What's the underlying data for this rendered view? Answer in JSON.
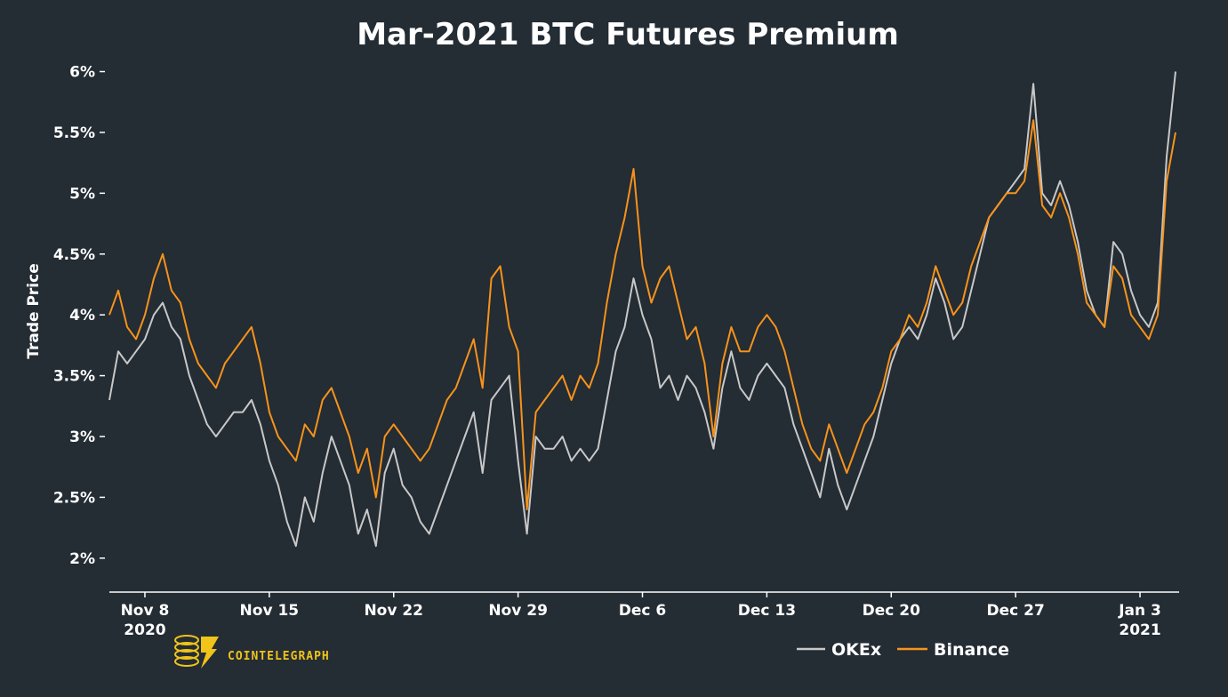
{
  "chart_data": {
    "type": "line",
    "title": "Mar-2021 BTC Futures Premium",
    "ylabel": "Trade Price",
    "xlabel": "",
    "ylim": [
      1.75,
      6.15
    ],
    "xlim": [
      -1.0,
      59.2
    ],
    "y_ticks": [
      {
        "value": 2.0,
        "label": "2%"
      },
      {
        "value": 2.5,
        "label": "2.5%"
      },
      {
        "value": 3.0,
        "label": "3%"
      },
      {
        "value": 3.5,
        "label": "3.5%"
      },
      {
        "value": 4.0,
        "label": "4%"
      },
      {
        "value": 4.5,
        "label": "4.5%"
      },
      {
        "value": 5.0,
        "label": "5%"
      },
      {
        "value": 5.5,
        "label": "5.5%"
      },
      {
        "value": 6.0,
        "label": "6%"
      }
    ],
    "x_ticks": [
      {
        "value": 1,
        "line1": "Nov 8",
        "line2": "2020"
      },
      {
        "value": 8,
        "line1": "Nov 15",
        "line2": ""
      },
      {
        "value": 15,
        "line1": "Nov 22",
        "line2": ""
      },
      {
        "value": 22,
        "line1": "Nov 29",
        "line2": ""
      },
      {
        "value": 29,
        "line1": "Dec 6",
        "line2": ""
      },
      {
        "value": 36,
        "line1": "Dec 13",
        "line2": ""
      },
      {
        "value": 43,
        "line1": "Dec 20",
        "line2": ""
      },
      {
        "value": 50,
        "line1": "Dec 27",
        "line2": ""
      },
      {
        "value": 57,
        "line1": "Jan 3",
        "line2": "2021"
      }
    ],
    "x_unit": "days since Nov 7 2020",
    "series": [
      {
        "name": "OKEx",
        "color": "#c8c8c8",
        "x": [
          -1.0,
          -0.5,
          0.0,
          0.5,
          1.0,
          1.5,
          2.0,
          2.5,
          3.0,
          3.5,
          4.0,
          4.5,
          5.0,
          5.5,
          6.0,
          6.5,
          7.0,
          7.5,
          8.0,
          8.5,
          9.0,
          9.5,
          10.0,
          10.5,
          11.0,
          11.5,
          12.0,
          12.5,
          13.0,
          13.5,
          14.0,
          14.5,
          15.0,
          15.5,
          16.0,
          16.5,
          17.0,
          17.5,
          18.0,
          18.5,
          19.0,
          19.5,
          20.0,
          20.5,
          21.0,
          21.5,
          22.0,
          22.5,
          23.0,
          23.5,
          24.0,
          24.5,
          25.0,
          25.5,
          26.0,
          26.5,
          27.0,
          27.5,
          28.0,
          28.5,
          29.0,
          29.5,
          30.0,
          30.5,
          31.0,
          31.5,
          32.0,
          32.5,
          33.0,
          33.5,
          34.0,
          34.5,
          35.0,
          35.5,
          36.0,
          36.5,
          37.0,
          37.5,
          38.0,
          38.5,
          39.0,
          39.5,
          40.0,
          40.5,
          41.0,
          41.5,
          42.0,
          42.5,
          43.0,
          43.5,
          44.0,
          44.5,
          45.0,
          45.5,
          46.0,
          46.5,
          47.0,
          47.5,
          48.0,
          48.5,
          49.0,
          49.5,
          50.0,
          50.5,
          51.0,
          51.5,
          52.0,
          52.5,
          53.0,
          53.5,
          54.0,
          54.5,
          55.0,
          55.5,
          56.0,
          56.5,
          57.0,
          57.5,
          58.0,
          58.5,
          59.0
        ],
        "values": [
          3.3,
          3.7,
          3.6,
          3.7,
          3.8,
          4.0,
          4.1,
          3.9,
          3.8,
          3.5,
          3.3,
          3.1,
          3.0,
          3.1,
          3.2,
          3.2,
          3.3,
          3.1,
          2.8,
          2.6,
          2.3,
          2.1,
          2.5,
          2.3,
          2.7,
          3.0,
          2.8,
          2.6,
          2.2,
          2.4,
          2.1,
          2.7,
          2.9,
          2.6,
          2.5,
          2.3,
          2.2,
          2.4,
          2.6,
          2.8,
          3.0,
          3.2,
          2.7,
          3.3,
          3.4,
          3.5,
          2.8,
          2.2,
          3.0,
          2.9,
          2.9,
          3.0,
          2.8,
          2.9,
          2.8,
          2.9,
          3.3,
          3.7,
          3.9,
          4.3,
          4.0,
          3.8,
          3.4,
          3.5,
          3.3,
          3.5,
          3.4,
          3.2,
          2.9,
          3.4,
          3.7,
          3.4,
          3.3,
          3.5,
          3.6,
          3.5,
          3.4,
          3.1,
          2.9,
          2.7,
          2.5,
          2.9,
          2.6,
          2.4,
          2.6,
          2.8,
          3.0,
          3.3,
          3.6,
          3.8,
          3.9,
          3.8,
          4.0,
          4.3,
          4.1,
          3.8,
          3.9,
          4.2,
          4.5,
          4.8,
          4.9,
          5.0,
          5.1,
          5.2,
          5.9,
          5.0,
          4.9,
          5.1,
          4.9,
          4.6,
          4.2,
          4.0,
          3.9,
          4.6,
          4.5,
          4.2,
          4.0,
          3.9,
          4.1,
          5.3,
          6.0
        ]
      },
      {
        "name": "Binance",
        "color": "#f7931a",
        "x": [
          -1.0,
          -0.5,
          0.0,
          0.5,
          1.0,
          1.5,
          2.0,
          2.5,
          3.0,
          3.5,
          4.0,
          4.5,
          5.0,
          5.5,
          6.0,
          6.5,
          7.0,
          7.5,
          8.0,
          8.5,
          9.0,
          9.5,
          10.0,
          10.5,
          11.0,
          11.5,
          12.0,
          12.5,
          13.0,
          13.5,
          14.0,
          14.5,
          15.0,
          15.5,
          16.0,
          16.5,
          17.0,
          17.5,
          18.0,
          18.5,
          19.0,
          19.5,
          20.0,
          20.5,
          21.0,
          21.5,
          22.0,
          22.5,
          23.0,
          23.5,
          24.0,
          24.5,
          25.0,
          25.5,
          26.0,
          26.5,
          27.0,
          27.5,
          28.0,
          28.5,
          29.0,
          29.5,
          30.0,
          30.5,
          31.0,
          31.5,
          32.0,
          32.5,
          33.0,
          33.5,
          34.0,
          34.5,
          35.0,
          35.5,
          36.0,
          36.5,
          37.0,
          37.5,
          38.0,
          38.5,
          39.0,
          39.5,
          40.0,
          40.5,
          41.0,
          41.5,
          42.0,
          42.5,
          43.0,
          43.5,
          44.0,
          44.5,
          45.0,
          45.5,
          46.0,
          46.5,
          47.0,
          47.5,
          48.0,
          48.5,
          49.0,
          49.5,
          50.0,
          50.5,
          51.0,
          51.5,
          52.0,
          52.5,
          53.0,
          53.5,
          54.0,
          54.5,
          55.0,
          55.5,
          56.0,
          56.5,
          57.0,
          57.5,
          58.0,
          58.5,
          59.0
        ],
        "values": [
          4.0,
          4.2,
          3.9,
          3.8,
          4.0,
          4.3,
          4.5,
          4.2,
          4.1,
          3.8,
          3.6,
          3.5,
          3.4,
          3.6,
          3.7,
          3.8,
          3.9,
          3.6,
          3.2,
          3.0,
          2.9,
          2.8,
          3.1,
          3.0,
          3.3,
          3.4,
          3.2,
          3.0,
          2.7,
          2.9,
          2.5,
          3.0,
          3.1,
          3.0,
          2.9,
          2.8,
          2.9,
          3.1,
          3.3,
          3.4,
          3.6,
          3.8,
          3.4,
          4.3,
          4.4,
          3.9,
          3.7,
          2.4,
          3.2,
          3.3,
          3.4,
          3.5,
          3.3,
          3.5,
          3.4,
          3.6,
          4.1,
          4.5,
          4.8,
          5.2,
          4.4,
          4.1,
          4.3,
          4.4,
          4.1,
          3.8,
          3.9,
          3.6,
          3.0,
          3.6,
          3.9,
          3.7,
          3.7,
          3.9,
          4.0,
          3.9,
          3.7,
          3.4,
          3.1,
          2.9,
          2.8,
          3.1,
          2.9,
          2.7,
          2.9,
          3.1,
          3.2,
          3.4,
          3.7,
          3.8,
          4.0,
          3.9,
          4.1,
          4.4,
          4.2,
          4.0,
          4.1,
          4.4,
          4.6,
          4.8,
          4.9,
          5.0,
          5.0,
          5.1,
          5.6,
          4.9,
          4.8,
          5.0,
          4.8,
          4.5,
          4.1,
          4.0,
          3.9,
          4.4,
          4.3,
          4.0,
          3.9,
          3.8,
          4.0,
          5.1,
          5.5
        ]
      }
    ],
    "legend": {
      "placement": "bottom-right",
      "entries": [
        "OKEx",
        "Binance"
      ]
    }
  },
  "brand": {
    "name": "COINTELEGRAPH",
    "color": "#f0c419"
  },
  "background": "#242c34"
}
